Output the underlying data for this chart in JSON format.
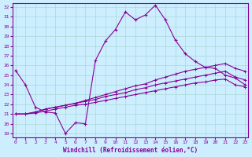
{
  "xlabel": "Windchill (Refroidissement éolien,°C)",
  "background_color": "#cceeff",
  "grid_color": "#aad8d8",
  "line_color": "#880099",
  "x_ticks": [
    0,
    1,
    2,
    3,
    4,
    5,
    6,
    7,
    8,
    9,
    10,
    11,
    12,
    13,
    14,
    15,
    16,
    17,
    18,
    19,
    20,
    21,
    22,
    23
  ],
  "y_ticks": [
    19,
    20,
    21,
    22,
    23,
    24,
    25,
    26,
    27,
    28,
    29,
    30,
    31,
    32
  ],
  "xlim": [
    -0.3,
    23.3
  ],
  "ylim": [
    18.6,
    32.4
  ],
  "jagged": [
    25.5,
    24.0,
    21.7,
    21.2,
    21.1,
    19.0,
    20.1,
    20.0,
    26.5,
    28.5,
    29.7,
    31.5,
    30.7,
    31.2,
    32.2,
    30.7,
    28.6,
    27.2,
    26.4,
    25.8,
    25.7,
    25.0,
    24.7,
    24.0
  ],
  "line1": [
    21.0,
    21.0,
    21.2,
    21.5,
    21.7,
    21.9,
    22.1,
    22.4,
    22.7,
    23.0,
    23.3,
    23.6,
    23.9,
    24.1,
    24.5,
    24.8,
    25.1,
    25.4,
    25.6,
    25.8,
    26.0,
    26.2,
    25.7,
    25.4
  ],
  "line2": [
    21.0,
    21.0,
    21.2,
    21.5,
    21.7,
    21.9,
    22.1,
    22.3,
    22.5,
    22.8,
    23.0,
    23.2,
    23.5,
    23.7,
    24.0,
    24.2,
    24.4,
    24.6,
    24.8,
    25.0,
    25.2,
    25.4,
    24.8,
    24.5
  ],
  "line3": [
    21.0,
    21.0,
    21.1,
    21.3,
    21.5,
    21.7,
    21.9,
    22.0,
    22.2,
    22.4,
    22.6,
    22.8,
    23.0,
    23.2,
    23.4,
    23.6,
    23.8,
    24.0,
    24.2,
    24.3,
    24.5,
    24.6,
    24.0,
    23.8
  ]
}
